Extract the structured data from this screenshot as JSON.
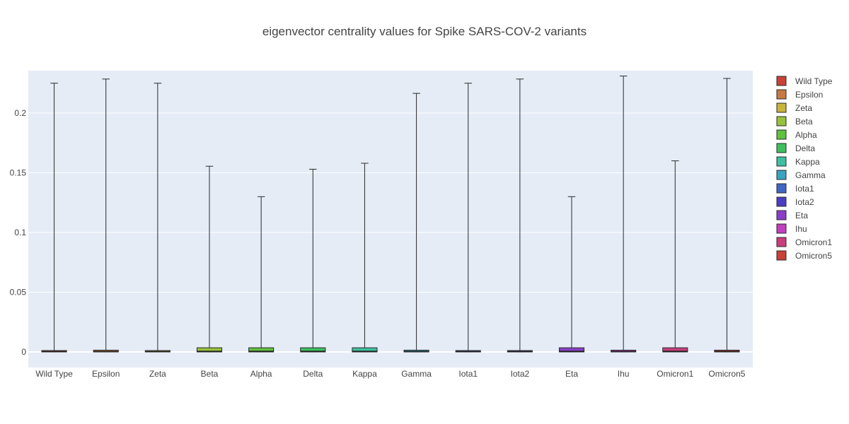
{
  "chart_data": {
    "type": "box",
    "title": "eigenvector centrality values for Spike SARS-COV-2 variants",
    "xlabel": "",
    "ylabel": "",
    "ylim": [
      -0.013,
      0.2355
    ],
    "yticks": [
      0,
      0.05,
      0.1,
      0.15,
      0.2
    ],
    "ytick_labels": [
      "0",
      "0.05",
      "0.1",
      "0.15",
      "0.2"
    ],
    "grid": true,
    "legend_position": "right",
    "series": [
      {
        "name": "Wild Type",
        "color": "#c84239",
        "min": 0.0,
        "q1": 0.0,
        "median": 0.0003,
        "q3": 0.0008,
        "max": 0.225
      },
      {
        "name": "Epsilon",
        "color": "#c87a44",
        "min": 0.0,
        "q1": 0.0,
        "median": 0.0004,
        "q3": 0.0015,
        "max": 0.2285
      },
      {
        "name": "Zeta",
        "color": "#c8b43c",
        "min": 0.0,
        "q1": 0.0,
        "median": 0.0003,
        "q3": 0.0008,
        "max": 0.225
      },
      {
        "name": "Beta",
        "color": "#98c23e",
        "min": 0.0,
        "q1": 0.0,
        "median": 0.0005,
        "q3": 0.0035,
        "max": 0.1555
      },
      {
        "name": "Alpha",
        "color": "#5fc13f",
        "min": 0.0,
        "q1": 0.0,
        "median": 0.0005,
        "q3": 0.0035,
        "max": 0.13
      },
      {
        "name": "Delta",
        "color": "#3fbf5e",
        "min": 0.0,
        "q1": 0.0,
        "median": 0.0005,
        "q3": 0.0035,
        "max": 0.153
      },
      {
        "name": "Kappa",
        "color": "#3ebf9f",
        "min": 0.0,
        "q1": 0.0,
        "median": 0.0005,
        "q3": 0.0035,
        "max": 0.158
      },
      {
        "name": "Gamma",
        "color": "#3aa3c0",
        "min": 0.0,
        "q1": 0.0,
        "median": 0.0004,
        "q3": 0.0015,
        "max": 0.2165
      },
      {
        "name": "Iota1",
        "color": "#4066c4",
        "min": 0.0,
        "q1": 0.0,
        "median": 0.0003,
        "q3": 0.0008,
        "max": 0.225
      },
      {
        "name": "Iota2",
        "color": "#4a3fc2",
        "min": 0.0,
        "q1": 0.0,
        "median": 0.0003,
        "q3": 0.001,
        "max": 0.2285
      },
      {
        "name": "Eta",
        "color": "#8a3fc8",
        "min": 0.0,
        "q1": 0.0,
        "median": 0.0005,
        "q3": 0.0035,
        "max": 0.13
      },
      {
        "name": "Ihu",
        "color": "#c23fc0",
        "min": 0.0,
        "q1": 0.0,
        "median": 0.0004,
        "q3": 0.0015,
        "max": 0.231
      },
      {
        "name": "Omicron1",
        "color": "#c83f7e",
        "min": 0.0,
        "q1": 0.0,
        "median": 0.0005,
        "q3": 0.0035,
        "max": 0.16
      },
      {
        "name": "Omicron5",
        "color": "#c84039",
        "min": 0.0,
        "q1": 0.0,
        "median": 0.0004,
        "q3": 0.0015,
        "max": 0.229
      }
    ]
  }
}
